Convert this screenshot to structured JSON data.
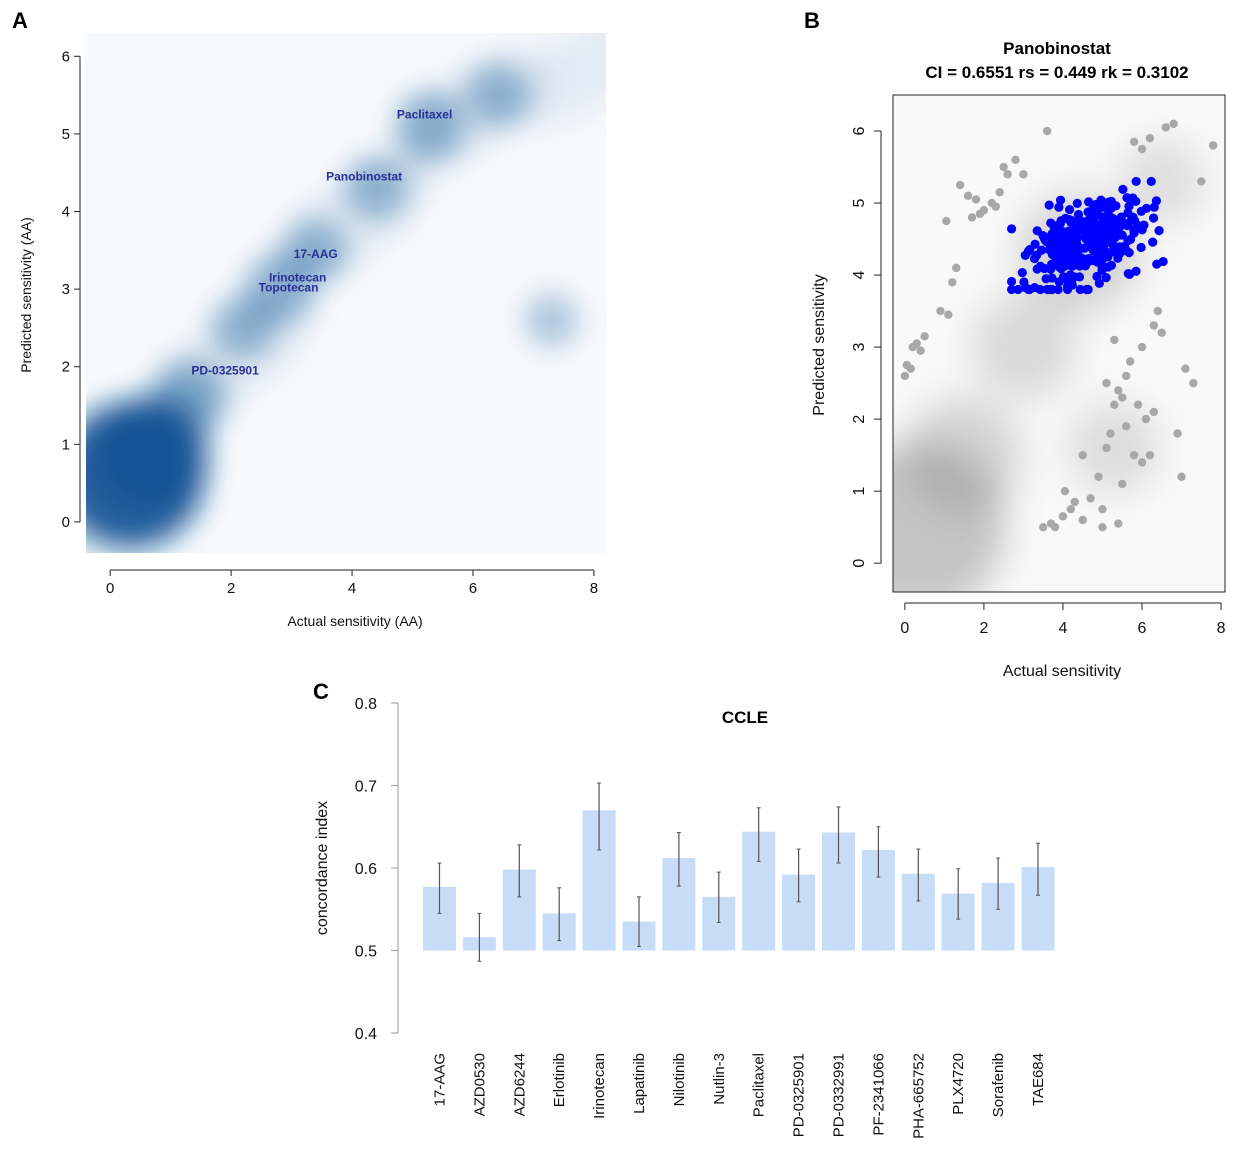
{
  "panel_labels": [
    "A",
    "B",
    "C"
  ],
  "colors": {
    "density_blue": "#0a4f92",
    "annotation_text": "#2b2f96",
    "point_highlight": "#0000ff",
    "point_background": "#a8a8a8",
    "density_gray": "#7a7a7a",
    "bar_fill": "#c6dcf7",
    "error_bar": "#555555",
    "axis": "#222222"
  },
  "chart_data": [
    {
      "panel": "A",
      "type": "heatmap",
      "title": "",
      "xlabel": "Actual sensitivity (AA)",
      "ylabel": "Predicted sensitivity (AA)",
      "xlim": [
        -0.4,
        8.2
      ],
      "ylim": [
        -0.4,
        6.3
      ],
      "xticks": [
        0,
        2,
        4,
        6,
        8
      ],
      "yticks": [
        0,
        1,
        2,
        3,
        4,
        5,
        6
      ],
      "density_centers": [
        {
          "x": 0.35,
          "y": 0.6,
          "w": 1.0
        },
        {
          "x": 0.7,
          "y": 0.9,
          "w": 0.7
        },
        {
          "x": 1.3,
          "y": 1.6,
          "w": 0.35
        },
        {
          "x": 2.2,
          "y": 2.5,
          "w": 0.25
        },
        {
          "x": 2.8,
          "y": 3.0,
          "w": 0.3
        },
        {
          "x": 3.4,
          "y": 3.5,
          "w": 0.25
        },
        {
          "x": 4.4,
          "y": 4.3,
          "w": 0.25
        },
        {
          "x": 5.3,
          "y": 5.1,
          "w": 0.3
        },
        {
          "x": 6.4,
          "y": 5.5,
          "w": 0.25
        },
        {
          "x": 7.3,
          "y": 2.6,
          "w": 0.15
        }
      ],
      "annotations": [
        {
          "text": "Paclitaxel",
          "x": 5.2,
          "y": 5.2
        },
        {
          "text": "Panobinostat",
          "x": 4.2,
          "y": 4.4
        },
        {
          "text": "17-AAG",
          "x": 3.4,
          "y": 3.4
        },
        {
          "text": "Irinotecan",
          "x": 3.1,
          "y": 3.1
        },
        {
          "text": "Topotecan",
          "x": 2.95,
          "y": 2.97
        },
        {
          "text": "PD-0325901",
          "x": 1.9,
          "y": 1.9
        }
      ]
    },
    {
      "panel": "B",
      "type": "scatter",
      "title": "Panobinostat",
      "subtitle": "CI = 0.6551 rs = 0.449 rk = 0.3102",
      "xlabel": "Actual sensitivity",
      "ylabel": "Predicted sensitivity",
      "xlim": [
        -0.3,
        8.1
      ],
      "ylim": [
        -0.4,
        6.5
      ],
      "xticks": [
        0,
        2,
        4,
        6,
        8
      ],
      "yticks": [
        0,
        1,
        2,
        3,
        4,
        5,
        6
      ],
      "highlight_cluster": {
        "cx": 4.6,
        "cy": 4.45,
        "sx": 0.75,
        "sy": 0.3,
        "n": 320,
        "x_range": [
          2.7,
          6.6
        ],
        "y_range": [
          3.8,
          5.3
        ]
      },
      "background_points": [
        [
          0.0,
          2.6
        ],
        [
          0.05,
          2.75
        ],
        [
          0.15,
          2.7
        ],
        [
          0.2,
          3.0
        ],
        [
          0.3,
          3.05
        ],
        [
          0.4,
          2.95
        ],
        [
          0.5,
          3.15
        ],
        [
          0.9,
          3.5
        ],
        [
          1.1,
          3.45
        ],
        [
          1.2,
          3.9
        ],
        [
          1.3,
          4.1
        ],
        [
          1.05,
          4.75
        ],
        [
          1.4,
          5.25
        ],
        [
          1.6,
          5.1
        ],
        [
          1.7,
          4.8
        ],
        [
          1.8,
          5.05
        ],
        [
          1.9,
          4.85
        ],
        [
          2.0,
          4.9
        ],
        [
          2.2,
          5.0
        ],
        [
          2.4,
          5.15
        ],
        [
          2.5,
          5.5
        ],
        [
          2.6,
          5.4
        ],
        [
          2.8,
          5.6
        ],
        [
          3.0,
          5.4
        ],
        [
          2.3,
          4.95
        ],
        [
          3.6,
          6.0
        ],
        [
          5.8,
          5.85
        ],
        [
          6.2,
          5.9
        ],
        [
          6.6,
          6.05
        ],
        [
          6.8,
          6.1
        ],
        [
          7.5,
          5.3
        ],
        [
          7.8,
          5.8
        ],
        [
          6.0,
          5.75
        ],
        [
          3.5,
          0.5
        ],
        [
          3.7,
          0.55
        ],
        [
          3.8,
          0.5
        ],
        [
          4.0,
          0.65
        ],
        [
          4.05,
          1.0
        ],
        [
          4.2,
          0.75
        ],
        [
          4.3,
          0.85
        ],
        [
          4.5,
          0.6
        ],
        [
          5.0,
          0.5
        ],
        [
          5.4,
          0.55
        ],
        [
          4.5,
          1.5
        ],
        [
          4.9,
          1.2
        ],
        [
          5.1,
          1.6
        ],
        [
          5.2,
          1.8
        ],
        [
          5.3,
          2.2
        ],
        [
          5.5,
          2.3
        ],
        [
          5.6,
          2.6
        ],
        [
          5.7,
          2.8
        ],
        [
          5.6,
          1.9
        ],
        [
          5.8,
          1.5
        ],
        [
          6.0,
          1.4
        ],
        [
          6.1,
          2.0
        ],
        [
          6.3,
          2.1
        ],
        [
          5.9,
          2.2
        ],
        [
          5.4,
          2.4
        ],
        [
          5.5,
          1.1
        ],
        [
          6.2,
          1.5
        ],
        [
          6.4,
          3.5
        ],
        [
          6.5,
          3.2
        ],
        [
          6.3,
          3.3
        ],
        [
          6.0,
          3.0
        ],
        [
          7.1,
          2.7
        ],
        [
          7.3,
          2.5
        ],
        [
          7.0,
          1.2
        ],
        [
          6.9,
          1.8
        ],
        [
          5.1,
          2.5
        ],
        [
          5.0,
          0.75
        ],
        [
          5.3,
          3.1
        ],
        [
          4.7,
          0.9
        ]
      ],
      "density_centers": [
        {
          "x": 0.4,
          "y": 0.5,
          "w": 1.0
        },
        {
          "x": 1.5,
          "y": 1.5,
          "w": 0.55
        },
        {
          "x": 3.0,
          "y": 3.0,
          "w": 0.45
        },
        {
          "x": 4.4,
          "y": 4.3,
          "w": 0.6
        },
        {
          "x": 5.3,
          "y": 1.6,
          "w": 0.35
        },
        {
          "x": 6.5,
          "y": 5.3,
          "w": 0.3
        }
      ]
    },
    {
      "panel": "C",
      "type": "bar",
      "title": "CCLE",
      "xlabel": "",
      "ylabel": "concordance index",
      "ylim": [
        0.4,
        0.8
      ],
      "yticks": [
        0.4,
        0.5,
        0.6,
        0.7,
        0.8
      ],
      "baseline": 0.5,
      "categories": [
        "17-AAG",
        "AZD0530",
        "AZD6244",
        "Erlotinib",
        "Irinotecan",
        "Lapatinib",
        "Nilotinib",
        "Nutlin-3",
        "Paclitaxel",
        "PD-0325901",
        "PD-0332991",
        "PF-2341066",
        "PHA-665752",
        "PLX4720",
        "Sorafenib",
        "TAE684"
      ],
      "values": [
        0.577,
        0.516,
        0.598,
        0.545,
        0.67,
        0.535,
        0.612,
        0.565,
        0.644,
        0.592,
        0.643,
        0.622,
        0.593,
        0.569,
        0.582,
        0.601
      ],
      "error_low": [
        0.545,
        0.487,
        0.565,
        0.512,
        0.622,
        0.505,
        0.578,
        0.534,
        0.608,
        0.559,
        0.606,
        0.589,
        0.56,
        0.538,
        0.55,
        0.567
      ],
      "error_high": [
        0.606,
        0.545,
        0.628,
        0.576,
        0.703,
        0.565,
        0.643,
        0.595,
        0.673,
        0.623,
        0.674,
        0.65,
        0.623,
        0.599,
        0.612,
        0.63
      ]
    }
  ]
}
